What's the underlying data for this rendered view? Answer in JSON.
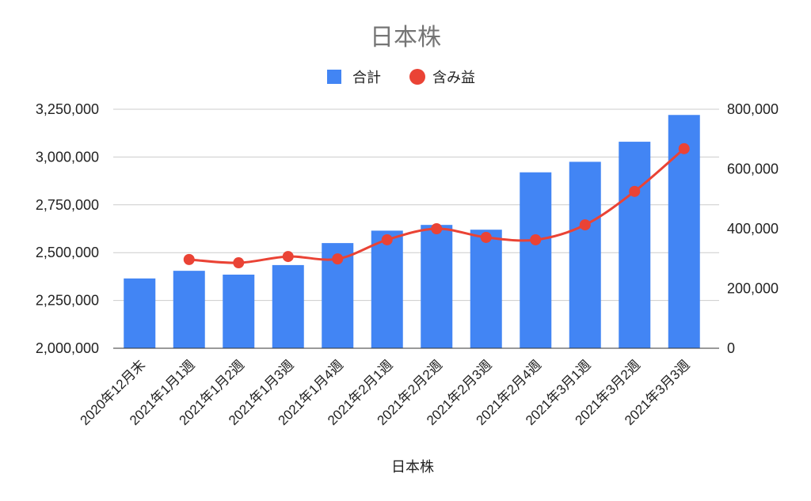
{
  "chart_data": {
    "type": "bar",
    "title": "日本株",
    "xlabel": "日本株",
    "categories": [
      "2020年12月末",
      "2021年1月1週",
      "2021年1月2週",
      "2021年1月3週",
      "2021年1月4週",
      "2021年2月1週",
      "2021年2月2週",
      "2021年2月3週",
      "2021年2月4週",
      "2021年3月1週",
      "2021年3月2週",
      "2021年3月3週"
    ],
    "series": [
      {
        "name": "合計",
        "type": "bar",
        "axis": "left",
        "color": "#4285F4",
        "values": [
          2365000,
          2405000,
          2385000,
          2435000,
          2550000,
          2615000,
          2645000,
          2620000,
          2920000,
          2975000,
          3080000,
          3220000
        ]
      },
      {
        "name": "含み益",
        "type": "line",
        "axis": "right",
        "smooth": true,
        "color": "#EA4335",
        "values": [
          null,
          297000,
          286000,
          307000,
          299000,
          363000,
          400000,
          371000,
          363000,
          413000,
          525000,
          668000
        ]
      }
    ],
    "ylim": [
      2000000,
      3250000
    ],
    "y2lim": [
      0,
      800000
    ],
    "yticks": [
      {
        "value": 2000000,
        "label": "2,000,000"
      },
      {
        "value": 2250000,
        "label": "2,250,000"
      },
      {
        "value": 2500000,
        "label": "2,500,000"
      },
      {
        "value": 2750000,
        "label": "2,750,000"
      },
      {
        "value": 3000000,
        "label": "3,000,000"
      },
      {
        "value": 3250000,
        "label": "3,250,000"
      }
    ],
    "y2ticks": [
      {
        "value": 0,
        "label": "0"
      },
      {
        "value": 200000,
        "label": "200,000"
      },
      {
        "value": 400000,
        "label": "400,000"
      },
      {
        "value": 600000,
        "label": "600,000"
      },
      {
        "value": 800000,
        "label": "800,000"
      }
    ],
    "grid": true,
    "legend": "top"
  }
}
